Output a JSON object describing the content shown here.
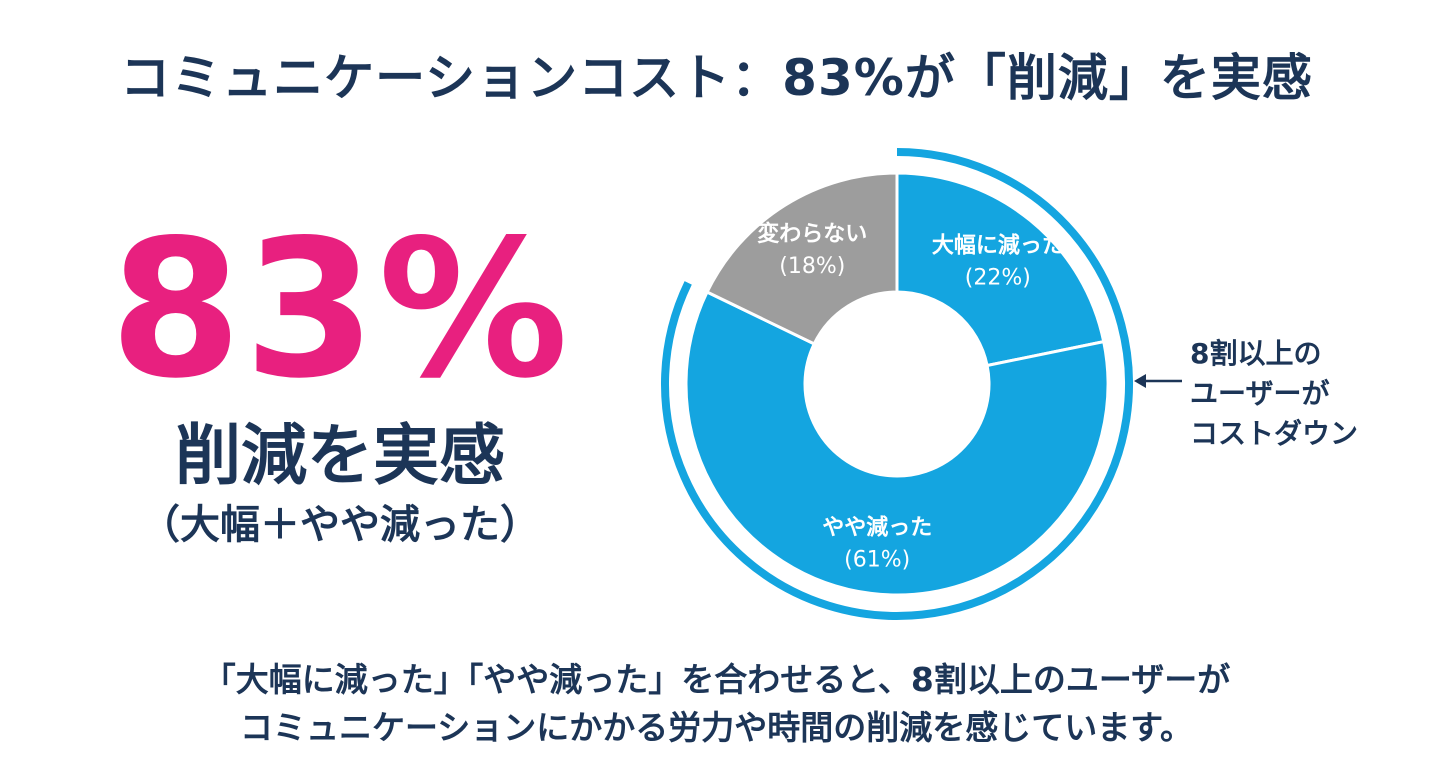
{
  "header": {
    "title": "コミュニケーションコスト：83%が「削減」を実感"
  },
  "highlight": {
    "value": "83%",
    "label": "削減を実感",
    "sublabel": "（大幅＋やや減った）"
  },
  "callout": {
    "lines": [
      "8割以上の",
      "ユーザーが",
      "コストダウン"
    ]
  },
  "footer": {
    "lines": [
      "「大幅に減った」「やや減った」を合わせると、8割以上のユーザーが",
      "コミュニケーションにかかる労力や時間の削減を感じています。"
    ]
  },
  "chart_data": {
    "type": "pie",
    "donut": true,
    "title": "",
    "series": [
      {
        "name": "大幅に減った",
        "value": 22,
        "label": "(22%)",
        "color": "#14a5e0"
      },
      {
        "name": "やや減った",
        "value": 61,
        "label": "(61%)",
        "color": "#14a5e0"
      },
      {
        "name": "変わらない",
        "value": 18,
        "label": "(18%)",
        "color": "#9d9d9d"
      }
    ],
    "highlight_arc": {
      "covers": [
        "大幅に減った",
        "やや減った"
      ],
      "color": "#14a5e0"
    },
    "legend": "none"
  }
}
